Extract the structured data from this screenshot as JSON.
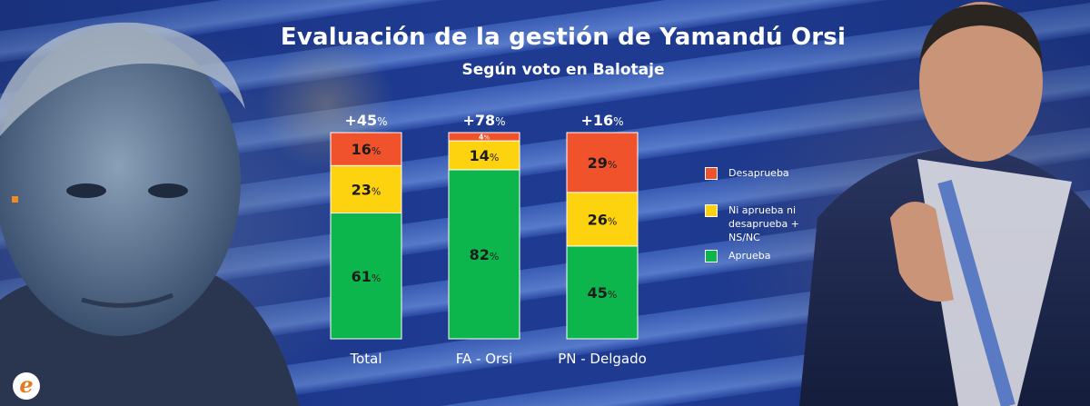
{
  "title": "Evaluación de la gestión de Yamandú Orsi",
  "subtitle": "Según voto en Balotaje",
  "colors": {
    "desaprueba": "#f0522b",
    "ni_aprueba": "#fdd20e",
    "aprueba": "#0cb64d",
    "text_on_bar": "#1c1c1c",
    "text_light": "#ffffff"
  },
  "chart_data": {
    "type": "bar",
    "stacked": true,
    "categories": [
      "Total",
      "FA - Orsi",
      "PN - Delgado"
    ],
    "net_labels": [
      {
        "value": "+45",
        "unit": "%"
      },
      {
        "value": "+78",
        "unit": "%"
      },
      {
        "value": "+16",
        "unit": "%"
      }
    ],
    "series": [
      {
        "key": "aprueba",
        "name": "Aprueba",
        "values": [
          61,
          82,
          45
        ]
      },
      {
        "key": "ni_aprueba",
        "name": "Ni aprueba ni desaprueba + NS/NC",
        "values": [
          23,
          14,
          26
        ]
      },
      {
        "key": "desaprueba",
        "name": "Desaprueba",
        "values": [
          16,
          4,
          29
        ]
      }
    ],
    "value_unit": "%",
    "ylim": [
      0,
      100
    ],
    "legend_position": "right"
  },
  "legend": {
    "items": [
      {
        "key": "desaprueba",
        "label": "Desaprueba"
      },
      {
        "key": "ni_aprueba",
        "label": "Ni aprueba ni desaprueba + NS/NC"
      },
      {
        "key": "aprueba",
        "label": "Aprueba"
      }
    ]
  },
  "logo": {
    "letter": "e"
  }
}
